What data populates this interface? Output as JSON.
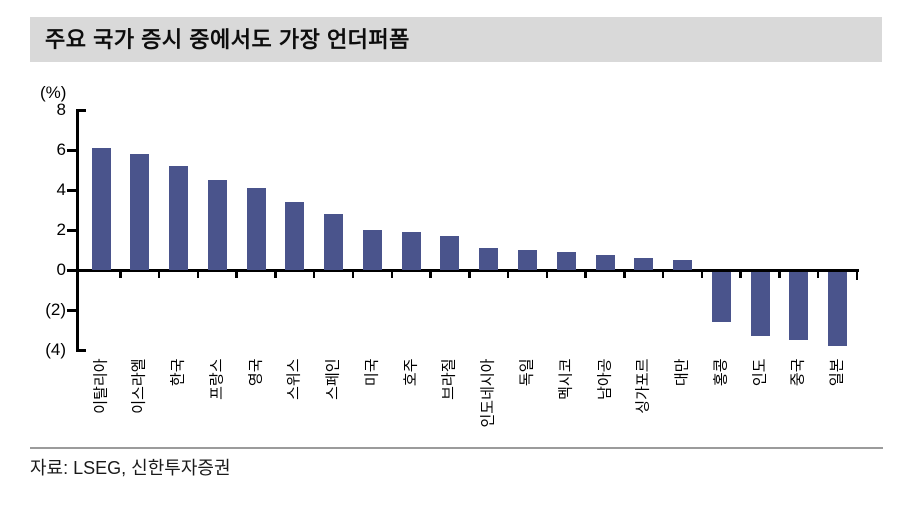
{
  "title": "주요 국가 증시 중에서도 가장 언더퍼폼",
  "footer": {
    "source": "자료: LSEG, 신한투자증권"
  },
  "colors": {
    "bar": "#4A548C",
    "title_background": "#D9D9D9",
    "axis": "#000000",
    "separator": "#9B9B9B"
  },
  "chart_data": {
    "type": "bar",
    "title": "주요 국가 증시 중에서도 가장 언더퍼폼",
    "unit_label": "(%)",
    "categories": [
      "이탈리아",
      "이스라엘",
      "한국",
      "프랑스",
      "영국",
      "스위스",
      "스페인",
      "미국",
      "호주",
      "브라질",
      "인도네시아",
      "독일",
      "멕시코",
      "남아공",
      "싱가포르",
      "대만",
      "홍콩",
      "인도",
      "중국",
      "일본"
    ],
    "values": [
      6.1,
      5.8,
      5.2,
      4.5,
      4.1,
      3.4,
      2.8,
      2.0,
      1.9,
      1.7,
      1.1,
      1.0,
      0.9,
      0.75,
      0.6,
      0.5,
      -2.5,
      -3.2,
      -3.4,
      -3.7
    ],
    "y_ticks": [
      {
        "value": 8,
        "label": "8"
      },
      {
        "value": 6,
        "label": "6"
      },
      {
        "value": 4,
        "label": "4"
      },
      {
        "value": 2,
        "label": "2"
      },
      {
        "value": 0,
        "label": "0"
      },
      {
        "value": -2,
        "label": "(2)"
      },
      {
        "value": -4,
        "label": "(4)"
      }
    ],
    "ylim": [
      -4,
      8
    ],
    "grid": false,
    "legend": null,
    "source": "자료: LSEG, 신한투자증권",
    "bar_color": "#4A548C"
  }
}
